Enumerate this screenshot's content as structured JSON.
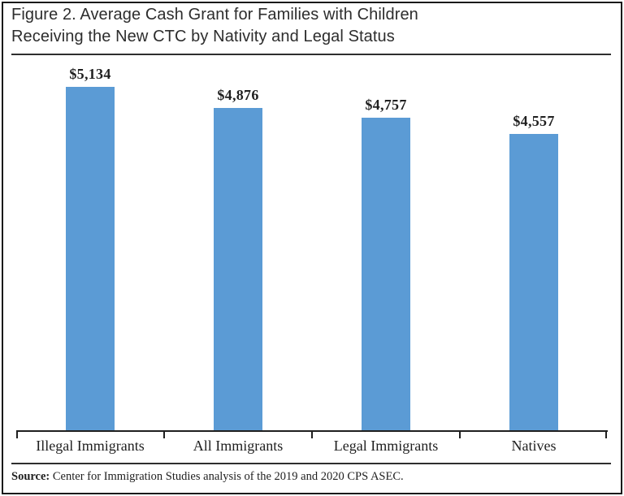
{
  "figure": {
    "title_line1": "Figure 2. Average Cash Grant for Families with Children",
    "title_line2": "Receiving the New CTC by Nativity and Legal Status"
  },
  "source": {
    "label": "Source:",
    "text": " Center for Immigration Studies analysis of the 2019 and 2020 CPS ASEC."
  },
  "chart_data": {
    "type": "bar",
    "title": "Figure 2. Average Cash Grant for Families with Children Receiving the New CTC by Nativity and Legal Status",
    "categories": [
      "Illegal Immigrants",
      "All Immigrants",
      "Legal Immigrants",
      "Natives"
    ],
    "values": [
      5134,
      4876,
      4757,
      4557
    ],
    "value_labels": [
      "$5,134",
      "$4,876",
      "$4,757",
      "$4,557"
    ],
    "bar_color": "#5B9BD5",
    "xlabel": "",
    "ylabel": "",
    "ylim": [
      900,
      5300
    ],
    "grid": false,
    "legend": false,
    "data_labels_position": "above-bars",
    "source_note": "Source: Center for Immigration Studies analysis of the 2019 and 2020 CPS ASEC."
  }
}
